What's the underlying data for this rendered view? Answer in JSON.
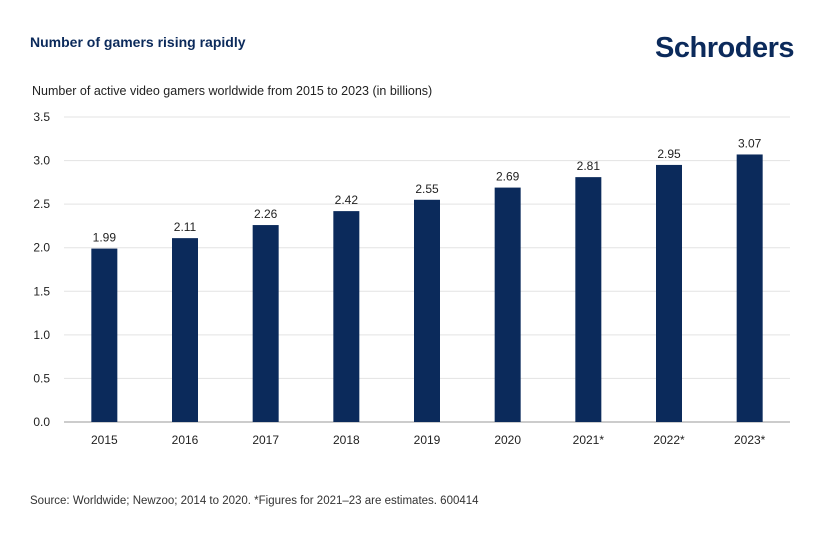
{
  "headline": "Number of gamers rising rapidly",
  "brand": {
    "name": "Schroders",
    "color": "#0b2a5b"
  },
  "footer": {
    "source": "Source: Worldwide; Newzoo; 2014 to 2020. *Figures for 2021–23 are estimates. 600414"
  },
  "chart_data": {
    "type": "bar",
    "title": "Number of active video gamers worldwide from 2015 to 2023 (in billions)",
    "xlabel": "",
    "ylabel": "",
    "categories": [
      "2015",
      "2016",
      "2017",
      "2018",
      "2019",
      "2020",
      "2021*",
      "2022*",
      "2023*"
    ],
    "values": [
      1.99,
      2.11,
      2.26,
      2.42,
      2.55,
      2.69,
      2.81,
      2.95,
      3.07
    ],
    "value_labels": [
      "1.99",
      "2.11",
      "2.26",
      "2.42",
      "2.55",
      "2.69",
      "2.81",
      "2.95",
      "3.07"
    ],
    "ylim": [
      0,
      3.5
    ],
    "yticks": [
      "0.0",
      "0.5",
      "1.0",
      "1.5",
      "2.0",
      "2.5",
      "3.0",
      "3.5"
    ],
    "grid": true,
    "bar_color": "#0b2a5b",
    "grid_color": "#e3e3e3"
  }
}
